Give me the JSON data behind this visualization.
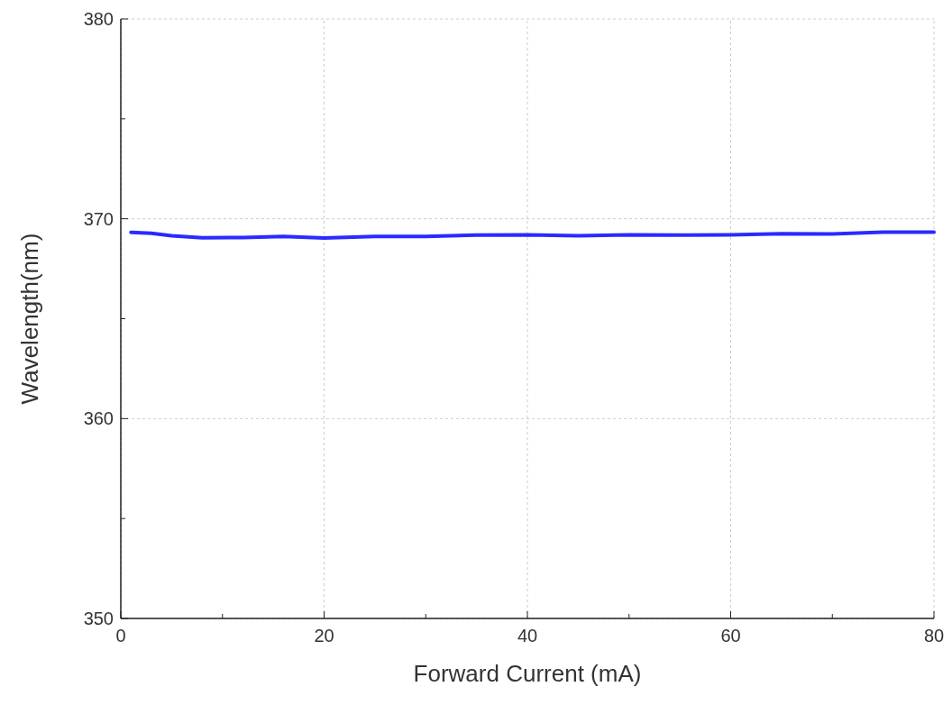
{
  "chart_data": {
    "type": "line",
    "xlabel": "Forward Current (mA)",
    "ylabel": "Wavelength(nm)",
    "x": [
      1,
      3,
      5,
      8,
      12,
      16,
      20,
      25,
      30,
      35,
      40,
      45,
      50,
      55,
      60,
      65,
      70,
      75,
      80
    ],
    "series": [
      {
        "color": "#2a2aff",
        "values": [
          369.32,
          369.27,
          369.15,
          369.05,
          369.06,
          369.12,
          369.04,
          369.12,
          369.12,
          369.18,
          369.2,
          369.15,
          369.2,
          369.18,
          369.2,
          369.25,
          369.24,
          369.33,
          369.33
        ]
      }
    ],
    "xlim": [
      0,
      80
    ],
    "xticks": [
      0,
      20,
      40,
      60,
      80
    ],
    "ylim": [
      350,
      380
    ],
    "yticks": [
      350,
      360,
      370,
      380
    ],
    "grid": true,
    "marker": "none",
    "line_style": "solid"
  }
}
